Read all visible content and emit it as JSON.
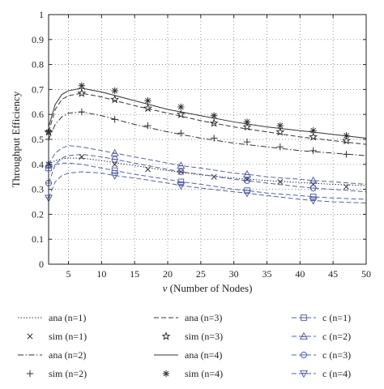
{
  "chart_data": {
    "type": "line",
    "title": "",
    "xlabel": "v (Number of Nodes)",
    "xlabel_symbol": "ν",
    "xlabel_rest": " (Number of Nodes)",
    "ylabel": "Throughput Efficiency",
    "xlim": [
      2,
      50
    ],
    "ylim": [
      0,
      1
    ],
    "xticks": [
      5,
      10,
      15,
      20,
      25,
      30,
      35,
      40,
      45,
      50
    ],
    "yticks": [
      0,
      0.1,
      0.2,
      0.3,
      0.4,
      0.5,
      0.6,
      0.7,
      0.8,
      0.9,
      1
    ],
    "grid": true,
    "legend_position": "below",
    "colors": {
      "black": "#333333",
      "blue": "#5561a8"
    },
    "series": [
      {
        "name": "ana (n=1)",
        "kind": "line",
        "dash": "dotted",
        "color": "black",
        "x": [
          2,
          3,
          4,
          5,
          7,
          10,
          15,
          20,
          25,
          30,
          35,
          40,
          45,
          50
        ],
        "y": [
          0.4,
          0.415,
          0.422,
          0.425,
          0.425,
          0.415,
          0.395,
          0.375,
          0.358,
          0.345,
          0.335,
          0.327,
          0.32,
          0.315
        ]
      },
      {
        "name": "sim (n=1)",
        "kind": "marker",
        "marker": "x",
        "color": "black",
        "x": [
          2,
          7,
          12,
          17,
          22,
          27,
          32,
          37,
          42,
          47
        ],
        "y": [
          0.4,
          0.43,
          0.4,
          0.38,
          0.37,
          0.35,
          0.34,
          0.33,
          0.32,
          0.31
        ]
      },
      {
        "name": "ana (n=2)",
        "kind": "line",
        "dash": "dashdot",
        "color": "black",
        "x": [
          2,
          3,
          4,
          5,
          7,
          10,
          15,
          20,
          25,
          30,
          35,
          40,
          45,
          50
        ],
        "y": [
          0.5,
          0.56,
          0.59,
          0.605,
          0.61,
          0.595,
          0.56,
          0.53,
          0.505,
          0.485,
          0.47,
          0.455,
          0.445,
          0.435
        ]
      },
      {
        "name": "sim (n=2)",
        "kind": "marker",
        "marker": "+",
        "color": "black",
        "x": [
          2,
          7,
          12,
          17,
          22,
          27,
          32,
          37,
          42,
          47
        ],
        "y": [
          0.5,
          0.61,
          0.58,
          0.555,
          0.525,
          0.505,
          0.49,
          0.47,
          0.455,
          0.44
        ]
      },
      {
        "name": "ana (n=3)",
        "kind": "line",
        "dash": "dashed",
        "color": "black",
        "x": [
          2,
          3,
          4,
          5,
          7,
          10,
          15,
          20,
          25,
          30,
          35,
          40,
          45,
          50
        ],
        "y": [
          0.53,
          0.62,
          0.66,
          0.675,
          0.685,
          0.67,
          0.635,
          0.605,
          0.575,
          0.55,
          0.53,
          0.51,
          0.495,
          0.48
        ]
      },
      {
        "name": "sim (n=3)",
        "kind": "marker",
        "marker": "star",
        "color": "black",
        "x": [
          2,
          7,
          12,
          17,
          22,
          27,
          32,
          37,
          42,
          47
        ],
        "y": [
          0.53,
          0.685,
          0.66,
          0.625,
          0.6,
          0.565,
          0.55,
          0.53,
          0.51,
          0.495
        ]
      },
      {
        "name": "ana (n=4)",
        "kind": "line",
        "dash": "solid",
        "color": "black",
        "x": [
          2,
          3,
          4,
          5,
          7,
          10,
          15,
          20,
          25,
          30,
          35,
          40,
          45,
          50
        ],
        "y": [
          0.55,
          0.64,
          0.68,
          0.695,
          0.705,
          0.69,
          0.655,
          0.62,
          0.595,
          0.57,
          0.55,
          0.535,
          0.52,
          0.505
        ]
      },
      {
        "name": "sim (n=4)",
        "kind": "marker",
        "marker": "asterisk",
        "color": "black",
        "x": [
          2,
          7,
          12,
          17,
          22,
          27,
          32,
          37,
          42,
          47
        ],
        "y": [
          0.53,
          0.715,
          0.695,
          0.655,
          0.63,
          0.595,
          0.57,
          0.555,
          0.535,
          0.515
        ]
      },
      {
        "name": "c (n=1)",
        "kind": "line+marker",
        "dash": "dashed",
        "marker": "square",
        "color": "blue",
        "x": [
          2,
          3,
          4,
          5,
          7,
          10,
          12,
          15,
          20,
          22,
          25,
          30,
          32,
          35,
          40,
          42,
          45,
          50
        ],
        "y": [
          0.385,
          0.4,
          0.405,
          0.405,
          0.4,
          0.385,
          0.375,
          0.36,
          0.34,
          0.33,
          0.32,
          0.3,
          0.295,
          0.285,
          0.275,
          0.27,
          0.265,
          0.26
        ],
        "marker_x": [
          2,
          12,
          22,
          32,
          42
        ],
        "marker_y": [
          0.385,
          0.375,
          0.33,
          0.295,
          0.27
        ]
      },
      {
        "name": "c (n=2)",
        "kind": "line+marker",
        "dash": "dashed",
        "marker": "triangle-up",
        "color": "blue",
        "x": [
          2,
          3,
          4,
          5,
          7,
          10,
          12,
          15,
          20,
          22,
          25,
          30,
          32,
          35,
          40,
          42,
          45,
          50
        ],
        "y": [
          0.4,
          0.445,
          0.465,
          0.475,
          0.47,
          0.455,
          0.445,
          0.43,
          0.405,
          0.395,
          0.385,
          0.365,
          0.36,
          0.35,
          0.34,
          0.335,
          0.33,
          0.32
        ],
        "marker_x": [
          2,
          12,
          22,
          32,
          42
        ],
        "marker_y": [
          0.4,
          0.445,
          0.395,
          0.36,
          0.335
        ]
      },
      {
        "name": "c (n=3)",
        "kind": "line+marker",
        "dash": "dashed",
        "marker": "circle",
        "color": "blue",
        "x": [
          2,
          3,
          4,
          5,
          7,
          10,
          12,
          15,
          20,
          22,
          25,
          30,
          32,
          35,
          40,
          42,
          45,
          50
        ],
        "y": [
          0.325,
          0.4,
          0.425,
          0.435,
          0.44,
          0.43,
          0.42,
          0.405,
          0.38,
          0.37,
          0.36,
          0.34,
          0.335,
          0.325,
          0.31,
          0.305,
          0.3,
          0.29
        ],
        "marker_x": [
          2,
          12,
          22,
          32,
          42
        ],
        "marker_y": [
          0.325,
          0.42,
          0.37,
          0.335,
          0.305
        ]
      },
      {
        "name": "c (n=4)",
        "kind": "line+marker",
        "dash": "dashed",
        "marker": "triangle-down",
        "color": "blue",
        "x": [
          2,
          3,
          4,
          5,
          7,
          10,
          12,
          15,
          20,
          22,
          25,
          30,
          32,
          35,
          40,
          42,
          45,
          50
        ],
        "y": [
          0.265,
          0.33,
          0.355,
          0.365,
          0.37,
          0.365,
          0.355,
          0.345,
          0.325,
          0.315,
          0.305,
          0.29,
          0.285,
          0.275,
          0.26,
          0.255,
          0.25,
          0.245
        ],
        "marker_x": [
          2,
          12,
          22,
          32,
          42
        ],
        "marker_y": [
          0.265,
          0.355,
          0.315,
          0.285,
          0.255
        ]
      }
    ]
  }
}
